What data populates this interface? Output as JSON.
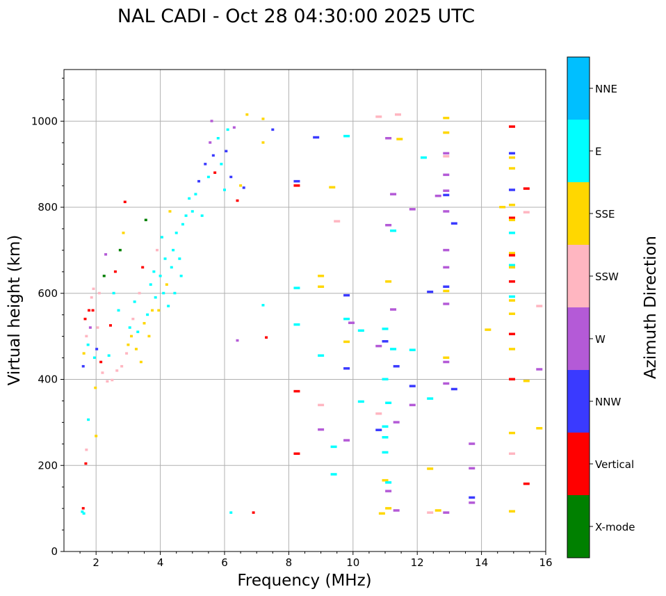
{
  "chart_data": {
    "type": "scatter",
    "title": "NAL CADI - Oct 28 04:30:00 2025 UTC",
    "xlabel": "Frequency (MHz)",
    "ylabel": "Virtual height (km)",
    "xlim": [
      1,
      16
    ],
    "ylim": [
      0,
      1120
    ],
    "xticks": [
      2,
      4,
      6,
      8,
      10,
      12,
      14,
      16
    ],
    "xtick_labels": [
      "2",
      "4",
      "6",
      "8",
      "10",
      "12",
      "14",
      "16"
    ],
    "yticks": [
      0,
      200,
      400,
      600,
      800,
      1000
    ],
    "ytick_labels": [
      "0",
      "200",
      "400",
      "600",
      "800",
      "1000"
    ],
    "grid": true,
    "colorbar": {
      "label": "Azimuth Direction",
      "categories": [
        "X-mode",
        "Vertical",
        "NNW",
        "W",
        "SSW",
        "SSE",
        "E",
        "NNE"
      ],
      "colors": [
        "#008000",
        "#ff0000",
        "#3a3aff",
        "#b45ad7",
        "#ffb6c1",
        "#ffd700",
        "#00ffff",
        "#00bfff"
      ]
    },
    "points": [
      {
        "f": 1.57,
        "h": 92,
        "c": "E"
      },
      {
        "f": 1.6,
        "h": 100,
        "c": "Vertical"
      },
      {
        "f": 1.62,
        "h": 88,
        "c": "E"
      },
      {
        "f": 1.68,
        "h": 204,
        "c": "Vertical"
      },
      {
        "f": 1.7,
        "h": 236,
        "c": "SSW"
      },
      {
        "f": 1.76,
        "h": 306,
        "c": "E"
      },
      {
        "f": 1.6,
        "h": 430,
        "c": "NNW"
      },
      {
        "f": 1.62,
        "h": 460,
        "c": "SSE"
      },
      {
        "f": 1.66,
        "h": 540,
        "c": "Vertical"
      },
      {
        "f": 1.7,
        "h": 500,
        "c": "SSW"
      },
      {
        "f": 1.75,
        "h": 480,
        "c": "E"
      },
      {
        "f": 1.78,
        "h": 560,
        "c": "Vertical"
      },
      {
        "f": 1.82,
        "h": 520,
        "c": "W"
      },
      {
        "f": 1.86,
        "h": 590,
        "c": "SSW"
      },
      {
        "f": 1.9,
        "h": 560,
        "c": "Vertical"
      },
      {
        "f": 1.92,
        "h": 610,
        "c": "SSW"
      },
      {
        "f": 1.95,
        "h": 450,
        "c": "E"
      },
      {
        "f": 1.98,
        "h": 380,
        "c": "SSE"
      },
      {
        "f": 2.0,
        "h": 268,
        "c": "SSE"
      },
      {
        "f": 2.02,
        "h": 470,
        "c": "NNW"
      },
      {
        "f": 2.05,
        "h": 520,
        "c": "SSW"
      },
      {
        "f": 2.1,
        "h": 600,
        "c": "SSW"
      },
      {
        "f": 2.15,
        "h": 440,
        "c": "Vertical"
      },
      {
        "f": 2.2,
        "h": 415,
        "c": "SSW"
      },
      {
        "f": 2.25,
        "h": 640,
        "c": "X-mode"
      },
      {
        "f": 2.3,
        "h": 690,
        "c": "W"
      },
      {
        "f": 2.35,
        "h": 395,
        "c": "SSW"
      },
      {
        "f": 2.4,
        "h": 455,
        "c": "E"
      },
      {
        "f": 2.45,
        "h": 525,
        "c": "Vertical"
      },
      {
        "f": 2.5,
        "h": 398,
        "c": "SSW"
      },
      {
        "f": 2.55,
        "h": 600,
        "c": "E"
      },
      {
        "f": 2.6,
        "h": 650,
        "c": "Vertical"
      },
      {
        "f": 2.65,
        "h": 420,
        "c": "SSW"
      },
      {
        "f": 2.7,
        "h": 560,
        "c": "E"
      },
      {
        "f": 2.75,
        "h": 700,
        "c": "X-mode"
      },
      {
        "f": 2.8,
        "h": 430,
        "c": "SSW"
      },
      {
        "f": 2.85,
        "h": 740,
        "c": "SSE"
      },
      {
        "f": 2.9,
        "h": 812,
        "c": "Vertical"
      },
      {
        "f": 2.95,
        "h": 460,
        "c": "SSW"
      },
      {
        "f": 3.0,
        "h": 480,
        "c": "SSE"
      },
      {
        "f": 3.05,
        "h": 520,
        "c": "E"
      },
      {
        "f": 3.1,
        "h": 500,
        "c": "SSE"
      },
      {
        "f": 3.15,
        "h": 540,
        "c": "SSW"
      },
      {
        "f": 3.2,
        "h": 580,
        "c": "E"
      },
      {
        "f": 3.25,
        "h": 470,
        "c": "SSE"
      },
      {
        "f": 3.3,
        "h": 510,
        "c": "E"
      },
      {
        "f": 3.35,
        "h": 600,
        "c": "SSW"
      },
      {
        "f": 3.4,
        "h": 440,
        "c": "SSE"
      },
      {
        "f": 3.45,
        "h": 660,
        "c": "Vertical"
      },
      {
        "f": 3.5,
        "h": 530,
        "c": "SSE"
      },
      {
        "f": 3.55,
        "h": 770,
        "c": "X-mode"
      },
      {
        "f": 3.6,
        "h": 550,
        "c": "E"
      },
      {
        "f": 3.65,
        "h": 500,
        "c": "SSE"
      },
      {
        "f": 3.7,
        "h": 620,
        "c": "E"
      },
      {
        "f": 3.75,
        "h": 560,
        "c": "SSE"
      },
      {
        "f": 3.8,
        "h": 650,
        "c": "E"
      },
      {
        "f": 3.85,
        "h": 590,
        "c": "E"
      },
      {
        "f": 3.9,
        "h": 700,
        "c": "SSW"
      },
      {
        "f": 3.95,
        "h": 560,
        "c": "SSE"
      },
      {
        "f": 4.0,
        "h": 640,
        "c": "E"
      },
      {
        "f": 4.05,
        "h": 730,
        "c": "E"
      },
      {
        "f": 4.1,
        "h": 600,
        "c": "E"
      },
      {
        "f": 4.15,
        "h": 680,
        "c": "E"
      },
      {
        "f": 4.2,
        "h": 620,
        "c": "SSE"
      },
      {
        "f": 4.25,
        "h": 570,
        "c": "E"
      },
      {
        "f": 4.3,
        "h": 790,
        "c": "SSE"
      },
      {
        "f": 4.35,
        "h": 660,
        "c": "E"
      },
      {
        "f": 4.4,
        "h": 700,
        "c": "E"
      },
      {
        "f": 4.45,
        "h": 600,
        "c": "E"
      },
      {
        "f": 4.5,
        "h": 740,
        "c": "E"
      },
      {
        "f": 4.6,
        "h": 680,
        "c": "E"
      },
      {
        "f": 4.65,
        "h": 640,
        "c": "E"
      },
      {
        "f": 4.7,
        "h": 760,
        "c": "E"
      },
      {
        "f": 4.8,
        "h": 780,
        "c": "E"
      },
      {
        "f": 4.9,
        "h": 820,
        "c": "E"
      },
      {
        "f": 5.0,
        "h": 790,
        "c": "E"
      },
      {
        "f": 5.1,
        "h": 830,
        "c": "E"
      },
      {
        "f": 5.2,
        "h": 860,
        "c": "NNW"
      },
      {
        "f": 5.3,
        "h": 780,
        "c": "E"
      },
      {
        "f": 5.4,
        "h": 900,
        "c": "NNW"
      },
      {
        "f": 5.5,
        "h": 870,
        "c": "E"
      },
      {
        "f": 5.55,
        "h": 950,
        "c": "W"
      },
      {
        "f": 5.6,
        "h": 1000,
        "c": "W"
      },
      {
        "f": 5.65,
        "h": 920,
        "c": "NNW"
      },
      {
        "f": 5.7,
        "h": 880,
        "c": "Vertical"
      },
      {
        "f": 5.8,
        "h": 960,
        "c": "E"
      },
      {
        "f": 5.9,
        "h": 900,
        "c": "E"
      },
      {
        "f": 6.0,
        "h": 840,
        "c": "E"
      },
      {
        "f": 6.05,
        "h": 930,
        "c": "NNW"
      },
      {
        "f": 6.1,
        "h": 980,
        "c": "E"
      },
      {
        "f": 6.2,
        "h": 870,
        "c": "NNW"
      },
      {
        "f": 6.3,
        "h": 985,
        "c": "W"
      },
      {
        "f": 6.4,
        "h": 815,
        "c": "Vertical"
      },
      {
        "f": 6.5,
        "h": 850,
        "c": "SSE"
      },
      {
        "f": 6.6,
        "h": 845,
        "c": "NNW"
      },
      {
        "f": 6.7,
        "h": 1015,
        "c": "SSE"
      },
      {
        "f": 7.2,
        "h": 950,
        "c": "SSE"
      },
      {
        "f": 7.2,
        "h": 1005,
        "c": "SSE"
      },
      {
        "f": 7.5,
        "h": 980,
        "c": "NNW"
      },
      {
        "f": 6.4,
        "h": 490,
        "c": "W"
      },
      {
        "f": 6.2,
        "h": 90,
        "c": "E"
      },
      {
        "f": 6.9,
        "h": 90,
        "c": "Vertical"
      },
      {
        "f": 7.3,
        "h": 497,
        "c": "Vertical"
      },
      {
        "f": 7.2,
        "h": 572,
        "c": "E"
      },
      {
        "f": 8.25,
        "h": 860,
        "c": "NNW"
      },
      {
        "f": 8.25,
        "h": 850,
        "c": "Vertical"
      },
      {
        "f": 8.25,
        "h": 612,
        "c": "E"
      },
      {
        "f": 8.25,
        "h": 527,
        "c": "E"
      },
      {
        "f": 8.25,
        "h": 372,
        "c": "Vertical"
      },
      {
        "f": 8.25,
        "h": 227,
        "c": "Vertical"
      },
      {
        "f": 8.85,
        "h": 962,
        "c": "NNW"
      },
      {
        "f": 9.0,
        "h": 640,
        "c": "SSE"
      },
      {
        "f": 9.0,
        "h": 615,
        "c": "SSE"
      },
      {
        "f": 9.0,
        "h": 455,
        "c": "E"
      },
      {
        "f": 9.0,
        "h": 340,
        "c": "SSW"
      },
      {
        "f": 9.0,
        "h": 283,
        "c": "W"
      },
      {
        "f": 9.35,
        "h": 846,
        "c": "SSE"
      },
      {
        "f": 9.5,
        "h": 767,
        "c": "SSW"
      },
      {
        "f": 9.4,
        "h": 243,
        "c": "E"
      },
      {
        "f": 9.4,
        "h": 179,
        "c": "E"
      },
      {
        "f": 9.8,
        "h": 965,
        "c": "E"
      },
      {
        "f": 9.8,
        "h": 595,
        "c": "NNW"
      },
      {
        "f": 9.8,
        "h": 540,
        "c": "E"
      },
      {
        "f": 9.8,
        "h": 487,
        "c": "SSE"
      },
      {
        "f": 9.8,
        "h": 425,
        "c": "NNW"
      },
      {
        "f": 9.8,
        "h": 258,
        "c": "W"
      },
      {
        "f": 9.95,
        "h": 531,
        "c": "W"
      },
      {
        "f": 10.25,
        "h": 513,
        "c": "E"
      },
      {
        "f": 10.25,
        "h": 348,
        "c": "E"
      },
      {
        "f": 10.8,
        "h": 1010,
        "c": "SSW"
      },
      {
        "f": 10.8,
        "h": 477,
        "c": "W"
      },
      {
        "f": 10.8,
        "h": 320,
        "c": "SSW"
      },
      {
        "f": 10.8,
        "h": 282,
        "c": "NNW"
      },
      {
        "f": 10.9,
        "h": 88,
        "c": "SSE"
      },
      {
        "f": 11.0,
        "h": 488,
        "c": "NNW"
      },
      {
        "f": 11.0,
        "h": 517,
        "c": "E"
      },
      {
        "f": 11.0,
        "h": 400,
        "c": "E"
      },
      {
        "f": 11.0,
        "h": 290,
        "c": "E"
      },
      {
        "f": 11.0,
        "h": 265,
        "c": "E"
      },
      {
        "f": 11.0,
        "h": 230,
        "c": "E"
      },
      {
        "f": 11.0,
        "h": 165,
        "c": "SSE"
      },
      {
        "f": 11.1,
        "h": 960,
        "c": "W"
      },
      {
        "f": 11.1,
        "h": 758,
        "c": "W"
      },
      {
        "f": 11.1,
        "h": 627,
        "c": "SSE"
      },
      {
        "f": 11.1,
        "h": 345,
        "c": "E"
      },
      {
        "f": 11.1,
        "h": 160,
        "c": "E"
      },
      {
        "f": 11.1,
        "h": 140,
        "c": "W"
      },
      {
        "f": 11.1,
        "h": 100,
        "c": "SSE"
      },
      {
        "f": 11.25,
        "h": 830,
        "c": "W"
      },
      {
        "f": 11.25,
        "h": 745,
        "c": "E"
      },
      {
        "f": 11.25,
        "h": 562,
        "c": "W"
      },
      {
        "f": 11.25,
        "h": 470,
        "c": "E"
      },
      {
        "f": 11.35,
        "h": 430,
        "c": "NNW"
      },
      {
        "f": 11.35,
        "h": 300,
        "c": "W"
      },
      {
        "f": 11.35,
        "h": 95,
        "c": "W"
      },
      {
        "f": 11.4,
        "h": 1015,
        "c": "SSW"
      },
      {
        "f": 11.45,
        "h": 958,
        "c": "SSE"
      },
      {
        "f": 11.85,
        "h": 795,
        "c": "W"
      },
      {
        "f": 11.85,
        "h": 468,
        "c": "E"
      },
      {
        "f": 11.85,
        "h": 384,
        "c": "NNW"
      },
      {
        "f": 11.85,
        "h": 340,
        "c": "W"
      },
      {
        "f": 12.2,
        "h": 915,
        "c": "E"
      },
      {
        "f": 12.4,
        "h": 603,
        "c": "NNW"
      },
      {
        "f": 12.4,
        "h": 355,
        "c": "E"
      },
      {
        "f": 12.4,
        "h": 192,
        "c": "SSE"
      },
      {
        "f": 12.4,
        "h": 90,
        "c": "SSW"
      },
      {
        "f": 12.65,
        "h": 95,
        "c": "SSE"
      },
      {
        "f": 12.65,
        "h": 826,
        "c": "W"
      },
      {
        "f": 12.9,
        "h": 1007,
        "c": "SSE"
      },
      {
        "f": 12.9,
        "h": 973,
        "c": "SSE"
      },
      {
        "f": 12.9,
        "h": 925,
        "c": "W"
      },
      {
        "f": 12.9,
        "h": 918,
        "c": "SSW"
      },
      {
        "f": 12.9,
        "h": 875,
        "c": "W"
      },
      {
        "f": 12.9,
        "h": 838,
        "c": "W"
      },
      {
        "f": 12.9,
        "h": 828,
        "c": "NNW"
      },
      {
        "f": 12.9,
        "h": 790,
        "c": "W"
      },
      {
        "f": 12.9,
        "h": 700,
        "c": "W"
      },
      {
        "f": 12.9,
        "h": 660,
        "c": "W"
      },
      {
        "f": 12.9,
        "h": 615,
        "c": "NNW"
      },
      {
        "f": 12.9,
        "h": 605,
        "c": "SSE"
      },
      {
        "f": 12.9,
        "h": 575,
        "c": "W"
      },
      {
        "f": 12.9,
        "h": 450,
        "c": "SSE"
      },
      {
        "f": 12.9,
        "h": 440,
        "c": "W"
      },
      {
        "f": 12.9,
        "h": 390,
        "c": "W"
      },
      {
        "f": 12.9,
        "h": 90,
        "c": "W"
      },
      {
        "f": 13.15,
        "h": 762,
        "c": "NNW"
      },
      {
        "f": 13.15,
        "h": 377,
        "c": "NNW"
      },
      {
        "f": 13.7,
        "h": 250,
        "c": "W"
      },
      {
        "f": 13.7,
        "h": 193,
        "c": "W"
      },
      {
        "f": 13.7,
        "h": 125,
        "c": "NNW"
      },
      {
        "f": 13.7,
        "h": 113,
        "c": "W"
      },
      {
        "f": 14.2,
        "h": 515,
        "c": "SSE"
      },
      {
        "f": 14.65,
        "h": 800,
        "c": "SSE"
      },
      {
        "f": 14.95,
        "h": 987,
        "c": "Vertical"
      },
      {
        "f": 14.95,
        "h": 925,
        "c": "NNW"
      },
      {
        "f": 14.95,
        "h": 915,
        "c": "SSE"
      },
      {
        "f": 14.95,
        "h": 890,
        "c": "SSE"
      },
      {
        "f": 14.95,
        "h": 840,
        "c": "NNW"
      },
      {
        "f": 14.95,
        "h": 805,
        "c": "SSE"
      },
      {
        "f": 14.95,
        "h": 775,
        "c": "Vertical"
      },
      {
        "f": 14.95,
        "h": 770,
        "c": "SSE"
      },
      {
        "f": 14.95,
        "h": 740,
        "c": "E"
      },
      {
        "f": 14.95,
        "h": 693,
        "c": "SSE"
      },
      {
        "f": 14.95,
        "h": 688,
        "c": "Vertical"
      },
      {
        "f": 14.95,
        "h": 665,
        "c": "E"
      },
      {
        "f": 14.95,
        "h": 660,
        "c": "SSE"
      },
      {
        "f": 14.95,
        "h": 627,
        "c": "Vertical"
      },
      {
        "f": 14.95,
        "h": 592,
        "c": "E"
      },
      {
        "f": 14.95,
        "h": 583,
        "c": "SSE"
      },
      {
        "f": 14.95,
        "h": 552,
        "c": "SSE"
      },
      {
        "f": 14.95,
        "h": 505,
        "c": "Vertical"
      },
      {
        "f": 14.95,
        "h": 470,
        "c": "SSE"
      },
      {
        "f": 14.95,
        "h": 400,
        "c": "Vertical"
      },
      {
        "f": 14.95,
        "h": 275,
        "c": "SSE"
      },
      {
        "f": 14.95,
        "h": 227,
        "c": "SSW"
      },
      {
        "f": 14.95,
        "h": 93,
        "c": "SSE"
      },
      {
        "f": 15.4,
        "h": 843,
        "c": "Vertical"
      },
      {
        "f": 15.4,
        "h": 788,
        "c": "SSW"
      },
      {
        "f": 15.4,
        "h": 396,
        "c": "SSE"
      },
      {
        "f": 15.4,
        "h": 157,
        "c": "Vertical"
      },
      {
        "f": 15.8,
        "h": 570,
        "c": "SSW"
      },
      {
        "f": 15.8,
        "h": 423,
        "c": "W"
      },
      {
        "f": 15.8,
        "h": 286,
        "c": "SSE"
      }
    ]
  }
}
